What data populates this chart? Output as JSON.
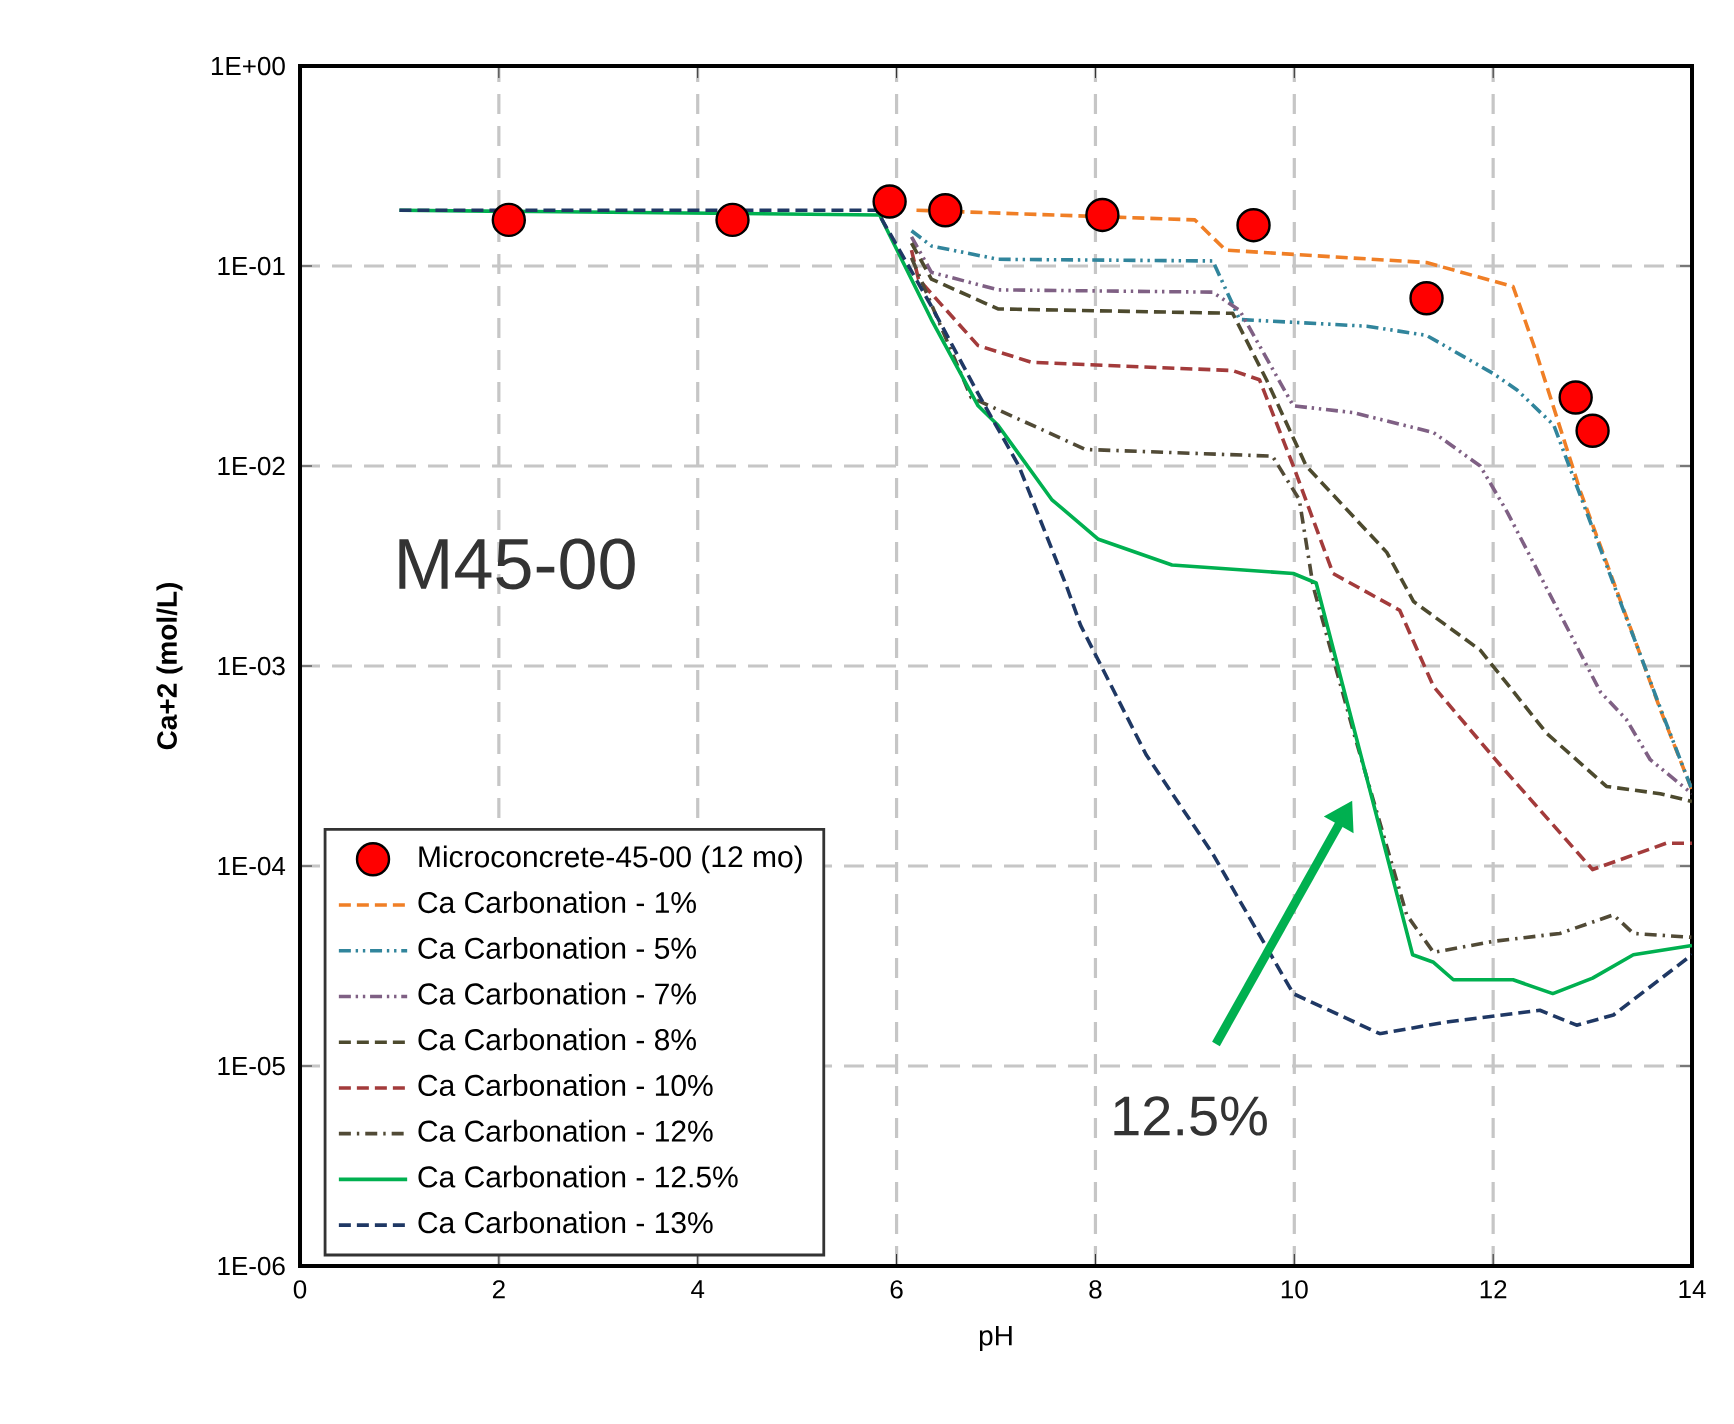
{
  "chart_data": {
    "type": "line",
    "xlabel": "pH",
    "ylabel": "Ca+2 (mol/L)",
    "log": "y",
    "grid": true,
    "legend": "bottom left",
    "xlim": [
      0,
      14
    ],
    "xticks": [
      0,
      2,
      4,
      6,
      8,
      10,
      12,
      14
    ],
    "ylim": [
      1e-06,
      1
    ],
    "yticks": [
      {
        "value": 1e-06,
        "label": "1E-06"
      },
      {
        "value": 1e-05,
        "label": "1E-05"
      },
      {
        "value": 0.0001,
        "label": "1E-04"
      },
      {
        "value": 0.001,
        "label": "1E-03"
      },
      {
        "value": 0.01,
        "label": "1E-02"
      },
      {
        "value": 0.1,
        "label": "1E-01"
      },
      {
        "value": 1,
        "label": "1E+00"
      }
    ],
    "annotations": [
      "M45-00",
      "12.5%"
    ],
    "series": [
      {
        "name": "Microconcrete-45-00 (12 mo)",
        "type": "scatter",
        "marker": "circle",
        "color": "#ff0000",
        "x": [
          2.1,
          4.35,
          5.93,
          6.49,
          8.07,
          9.59,
          11.33,
          12.83,
          13.0
        ],
        "values": [
          0.17,
          0.17,
          0.21,
          0.19,
          0.18,
          0.16,
          0.069,
          0.022,
          0.015
        ]
      },
      {
        "name": "Ca Carbonation - 1%",
        "color": "#f07f26",
        "line_style": "dashed",
        "x": [
          6.2,
          9.0,
          9.31,
          11.33,
          12.2,
          12.41,
          12.88,
          13.69,
          14
        ],
        "values": [
          0.19,
          0.17,
          0.12,
          0.104,
          0.079,
          0.04,
          0.0074,
          0.00059,
          0.00024
        ]
      },
      {
        "name": "Ca Carbonation - 5%",
        "color": "#31859c",
        "line_style": "dashdotdot",
        "x": [
          6.15,
          6.35,
          7.02,
          9.18,
          9.45,
          10.73,
          11.33,
          12.0,
          12.24,
          12.61,
          13.69,
          14
        ],
        "values": [
          0.15,
          0.126,
          0.108,
          0.106,
          0.054,
          0.05,
          0.045,
          0.029,
          0.024,
          0.016,
          0.0006,
          0.00024
        ]
      },
      {
        "name": "Ca Carbonation - 7%",
        "color": "#7f6084",
        "line_style": "dashdotdot",
        "x": [
          6.15,
          6.35,
          7.02,
          9.18,
          9.45,
          9.99,
          10.59,
          11.4,
          11.87,
          12.14,
          13.08,
          13.34,
          13.58,
          14
        ],
        "values": [
          0.14,
          0.093,
          0.076,
          0.074,
          0.06,
          0.02,
          0.0185,
          0.0147,
          0.01,
          0.0059,
          0.00074,
          0.00054,
          0.00034,
          0.00023
        ]
      },
      {
        "name": "Ca Carbonation - 8%",
        "color": "#4d4a2e",
        "line_style": "dashed",
        "x": [
          6.15,
          6.35,
          7.02,
          9.38,
          9.72,
          10.12,
          10.93,
          11.2,
          11.87,
          12.54,
          13.14,
          13.68,
          14
        ],
        "values": [
          0.13,
          0.086,
          0.061,
          0.058,
          0.027,
          0.01,
          0.0037,
          0.0021,
          0.0012,
          0.00046,
          0.00025,
          0.00023,
          0.00021
        ]
      },
      {
        "name": "Ca Carbonation - 10%",
        "color": "#a33b3b",
        "line_style": "dashed",
        "x": [
          6.15,
          6.22,
          6.82,
          7.36,
          9.38,
          9.65,
          9.99,
          10.39,
          11.06,
          11.4,
          12.07,
          13.0,
          13.74,
          14
        ],
        "values": [
          0.12,
          0.086,
          0.04,
          0.033,
          0.03,
          0.027,
          0.01,
          0.0029,
          0.0019,
          0.00079,
          0.00032,
          9.6e-05,
          0.00013,
          0.00013
        ]
      },
      {
        "name": "Ca Carbonation - 12%",
        "color": "#514a36",
        "line_style": "dashdot",
        "x": [
          6.15,
          6.75,
          7.9,
          9.78,
          10.05,
          10.19,
          10.6,
          11.13,
          11.4,
          12.0,
          12.67,
          13.21,
          13.41,
          14
        ],
        "values": [
          0.11,
          0.022,
          0.0121,
          0.0112,
          0.0068,
          0.0025,
          0.00046,
          5.7e-05,
          3.7e-05,
          4.2e-05,
          4.6e-05,
          5.7e-05,
          4.6e-05,
          4.4e-05
        ]
      },
      {
        "name": "Ca Carbonation - 12.5%",
        "color": "#00b050",
        "line_style": "solid",
        "x": [
          1,
          5.83,
          6.35,
          6.82,
          7.02,
          7.56,
          8.03,
          8.77,
          9.99,
          10.22,
          11.19,
          11.4,
          11.6,
          12.2,
          12.6,
          13.0,
          13.41,
          14
        ],
        "values": [
          0.19,
          0.18,
          0.054,
          0.02,
          0.016,
          0.0068,
          0.0043,
          0.0032,
          0.0029,
          0.0026,
          3.6e-05,
          3.3e-05,
          2.7e-05,
          2.7e-05,
          2.3e-05,
          2.75e-05,
          3.6e-05,
          4e-05
        ]
      },
      {
        "name": "Ca Carbonation - 13%",
        "color": "#1f3864",
        "line_style": "dashed",
        "x": [
          1,
          5.8,
          6.35,
          6.82,
          7.23,
          7.71,
          7.85,
          8.51,
          9.18,
          9.99,
          10.86,
          11.53,
          12.47,
          12.84,
          13.21,
          14
        ],
        "values": [
          0.19,
          0.19,
          0.063,
          0.023,
          0.01,
          0.0025,
          0.0016,
          0.00036,
          0.000115,
          2.3e-05,
          1.45e-05,
          1.66e-05,
          1.9e-05,
          1.6e-05,
          1.8e-05,
          3.6e-05
        ]
      }
    ]
  }
}
